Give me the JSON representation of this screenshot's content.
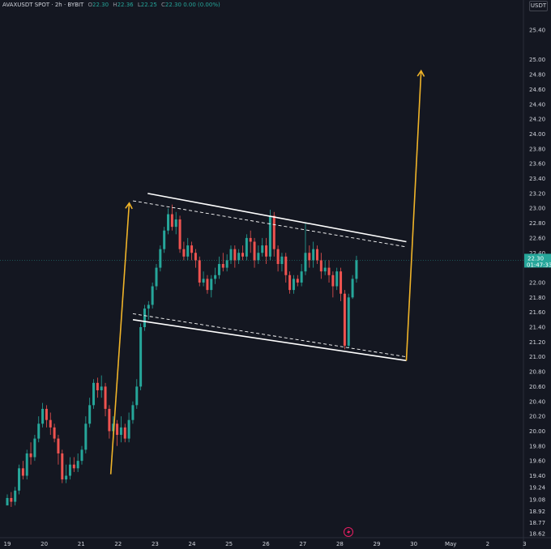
{
  "header": {
    "symbol": "AVAXUSDT SPOT · 2h · BYBIT",
    "open_label": "O",
    "open": "22.30",
    "high_label": "H",
    "high": "22.36",
    "low_label": "L",
    "low": "22.25",
    "close_label": "C",
    "close": "22.30",
    "change": "0.00 (0.00%)"
  },
  "currency_button": "USDT",
  "colors": {
    "background": "#141721",
    "up": "#26a69a",
    "down": "#ef5350",
    "arrow": "#f0b429",
    "channel": "#ffffff",
    "label_bg": "#26a69a"
  },
  "icons": {
    "lightning": "lightning-icon"
  },
  "chart_data": {
    "type": "candlestick",
    "price_axis": {
      "ticks": [
        "25.40",
        "25.00",
        "24.80",
        "24.60",
        "24.40",
        "24.20",
        "24.00",
        "23.80",
        "23.60",
        "23.40",
        "23.20",
        "23.00",
        "22.80",
        "22.60",
        "22.40",
        "22.00",
        "21.80",
        "21.60",
        "21.40",
        "21.20",
        "21.00",
        "20.80",
        "20.60",
        "20.40",
        "20.20",
        "20.00",
        "19.80",
        "19.60",
        "19.40",
        "19.24",
        "19.08",
        "18.92",
        "18.77",
        "18.62"
      ],
      "range": [
        18.55,
        25.55
      ]
    },
    "time_axis": {
      "labels": [
        "19",
        "20",
        "21",
        "22",
        "23",
        "24",
        "25",
        "26",
        "27",
        "28",
        "29",
        "30",
        "May",
        "2",
        "3"
      ],
      "range": [
        19,
        33
      ]
    },
    "last_price": {
      "price": "22.30",
      "countdown": "01:47:33"
    },
    "candles": [
      [
        19.0,
        19.1,
        19.15,
        19.05
      ],
      [
        19.1,
        19.05,
        19.18,
        18.98
      ],
      [
        19.05,
        19.2,
        19.25,
        19.0
      ],
      [
        19.2,
        19.5,
        19.55,
        19.15
      ],
      [
        19.5,
        19.4,
        19.6,
        19.35
      ],
      [
        19.4,
        19.7,
        19.75,
        19.35
      ],
      [
        19.7,
        19.65,
        19.85,
        19.55
      ],
      [
        19.65,
        19.9,
        19.95,
        19.6
      ],
      [
        19.9,
        20.1,
        20.2,
        19.85
      ],
      [
        20.1,
        20.3,
        20.38,
        20.05
      ],
      [
        20.3,
        20.15,
        20.35,
        20.05
      ],
      [
        20.15,
        20.05,
        20.25,
        19.95
      ],
      [
        20.05,
        19.9,
        20.1,
        19.85
      ],
      [
        19.9,
        19.7,
        19.95,
        19.55
      ],
      [
        19.7,
        19.35,
        19.75,
        19.3
      ],
      [
        19.35,
        19.4,
        19.55,
        19.3
      ],
      [
        19.4,
        19.55,
        19.65,
        19.35
      ],
      [
        19.55,
        19.5,
        19.65,
        19.45
      ],
      [
        19.5,
        19.6,
        19.7,
        19.45
      ],
      [
        19.6,
        19.75,
        19.8,
        19.55
      ],
      [
        19.75,
        20.1,
        20.2,
        19.7
      ],
      [
        20.1,
        20.35,
        20.45,
        20.05
      ],
      [
        20.35,
        20.65,
        20.7,
        20.3
      ],
      [
        20.65,
        20.55,
        20.72,
        20.45
      ],
      [
        20.55,
        20.6,
        20.75,
        20.45
      ],
      [
        20.6,
        20.3,
        20.65,
        20.2
      ],
      [
        20.3,
        20.0,
        20.35,
        19.9
      ],
      [
        20.0,
        20.1,
        20.2,
        19.95
      ],
      [
        20.1,
        19.95,
        20.15,
        19.8
      ],
      [
        19.95,
        20.05,
        20.2,
        19.85
      ],
      [
        20.05,
        19.9,
        20.1,
        19.85
      ],
      [
        19.9,
        20.15,
        20.25,
        19.85
      ],
      [
        20.15,
        20.35,
        20.4,
        20.1
      ],
      [
        20.35,
        20.6,
        20.7,
        20.3
      ],
      [
        20.6,
        21.4,
        21.45,
        20.55
      ],
      [
        21.4,
        21.65,
        21.7,
        21.35
      ],
      [
        21.65,
        21.7,
        21.75,
        21.5
      ],
      [
        21.7,
        21.95,
        22.0,
        21.65
      ],
      [
        21.95,
        22.2,
        22.25,
        21.9
      ],
      [
        22.2,
        22.45,
        22.5,
        22.15
      ],
      [
        22.45,
        22.7,
        22.75,
        22.4
      ],
      [
        22.7,
        22.92,
        23.0,
        22.65
      ],
      [
        22.92,
        22.75,
        23.05,
        22.7
      ],
      [
        22.75,
        22.85,
        22.95,
        22.65
      ],
      [
        22.85,
        22.45,
        22.9,
        22.4
      ],
      [
        22.45,
        22.35,
        22.55,
        22.3
      ],
      [
        22.35,
        22.5,
        22.6,
        22.3
      ],
      [
        22.5,
        22.4,
        22.55,
        22.3
      ],
      [
        22.4,
        22.3,
        22.45,
        22.2
      ],
      [
        22.3,
        22.0,
        22.35,
        21.95
      ],
      [
        22.0,
        22.05,
        22.15,
        21.95
      ],
      [
        22.05,
        21.9,
        22.1,
        21.85
      ],
      [
        21.9,
        22.05,
        22.1,
        21.8
      ],
      [
        22.05,
        22.1,
        22.2,
        21.98
      ],
      [
        22.1,
        22.25,
        22.35,
        22.05
      ],
      [
        22.25,
        22.2,
        22.4,
        22.15
      ],
      [
        22.2,
        22.3,
        22.38,
        22.15
      ],
      [
        22.3,
        22.45,
        22.5,
        22.25
      ],
      [
        22.45,
        22.3,
        22.5,
        22.2
      ],
      [
        22.3,
        22.4,
        22.45,
        22.25
      ],
      [
        22.4,
        22.35,
        22.5,
        22.3
      ],
      [
        22.35,
        22.6,
        22.65,
        22.3
      ],
      [
        22.6,
        22.55,
        22.7,
        22.4
      ],
      [
        22.55,
        22.3,
        22.6,
        22.2
      ],
      [
        22.3,
        22.4,
        22.5,
        22.25
      ],
      [
        22.4,
        22.5,
        22.6,
        22.35
      ],
      [
        22.5,
        22.35,
        22.6,
        22.25
      ],
      [
        22.35,
        22.9,
        22.98,
        22.3
      ],
      [
        22.9,
        22.45,
        22.95,
        22.35
      ],
      [
        22.45,
        22.25,
        22.5,
        22.15
      ],
      [
        22.25,
        22.35,
        22.4,
        22.15
      ],
      [
        22.35,
        22.1,
        22.4,
        22.0
      ],
      [
        22.1,
        21.9,
        22.15,
        21.85
      ],
      [
        21.9,
        22.05,
        22.1,
        21.85
      ],
      [
        22.05,
        22.0,
        22.1,
        21.95
      ],
      [
        22.0,
        22.15,
        22.25,
        21.95
      ],
      [
        22.15,
        22.4,
        22.8,
        22.1
      ],
      [
        22.4,
        22.3,
        22.5,
        22.2
      ],
      [
        22.3,
        22.45,
        22.55,
        22.2
      ],
      [
        22.45,
        22.3,
        22.5,
        22.25
      ],
      [
        22.3,
        22.15,
        22.4,
        22.05
      ],
      [
        22.15,
        22.2,
        22.3,
        22.1
      ],
      [
        22.2,
        22.1,
        22.3,
        22.0
      ],
      [
        22.1,
        21.95,
        22.15,
        21.8
      ],
      [
        21.95,
        22.15,
        22.2,
        21.9
      ],
      [
        22.15,
        21.85,
        22.2,
        21.75
      ],
      [
        21.85,
        21.15,
        21.9,
        21.1
      ],
      [
        21.15,
        21.8,
        21.85,
        21.12
      ],
      [
        21.8,
        22.05,
        22.1,
        21.78
      ],
      [
        22.05,
        22.3,
        22.36,
        22.0
      ]
    ],
    "annotations": {
      "channel_upper": [
        [
          22.8,
          23.2
        ],
        [
          29.8,
          22.55
        ]
      ],
      "channel_lower": [
        [
          22.4,
          21.5
        ],
        [
          29.8,
          20.95
        ]
      ],
      "channel_upper_dashed": [
        [
          22.4,
          23.1
        ],
        [
          29.8,
          22.48
        ]
      ],
      "channel_lower_dashed": [
        [
          22.4,
          21.58
        ],
        [
          29.8,
          21.0
        ]
      ],
      "arrow_left": [
        [
          21.8,
          19.42
        ],
        [
          22.3,
          23.07
        ]
      ],
      "arrow_right": [
        [
          29.8,
          20.95
        ],
        [
          30.2,
          24.85
        ]
      ]
    }
  }
}
